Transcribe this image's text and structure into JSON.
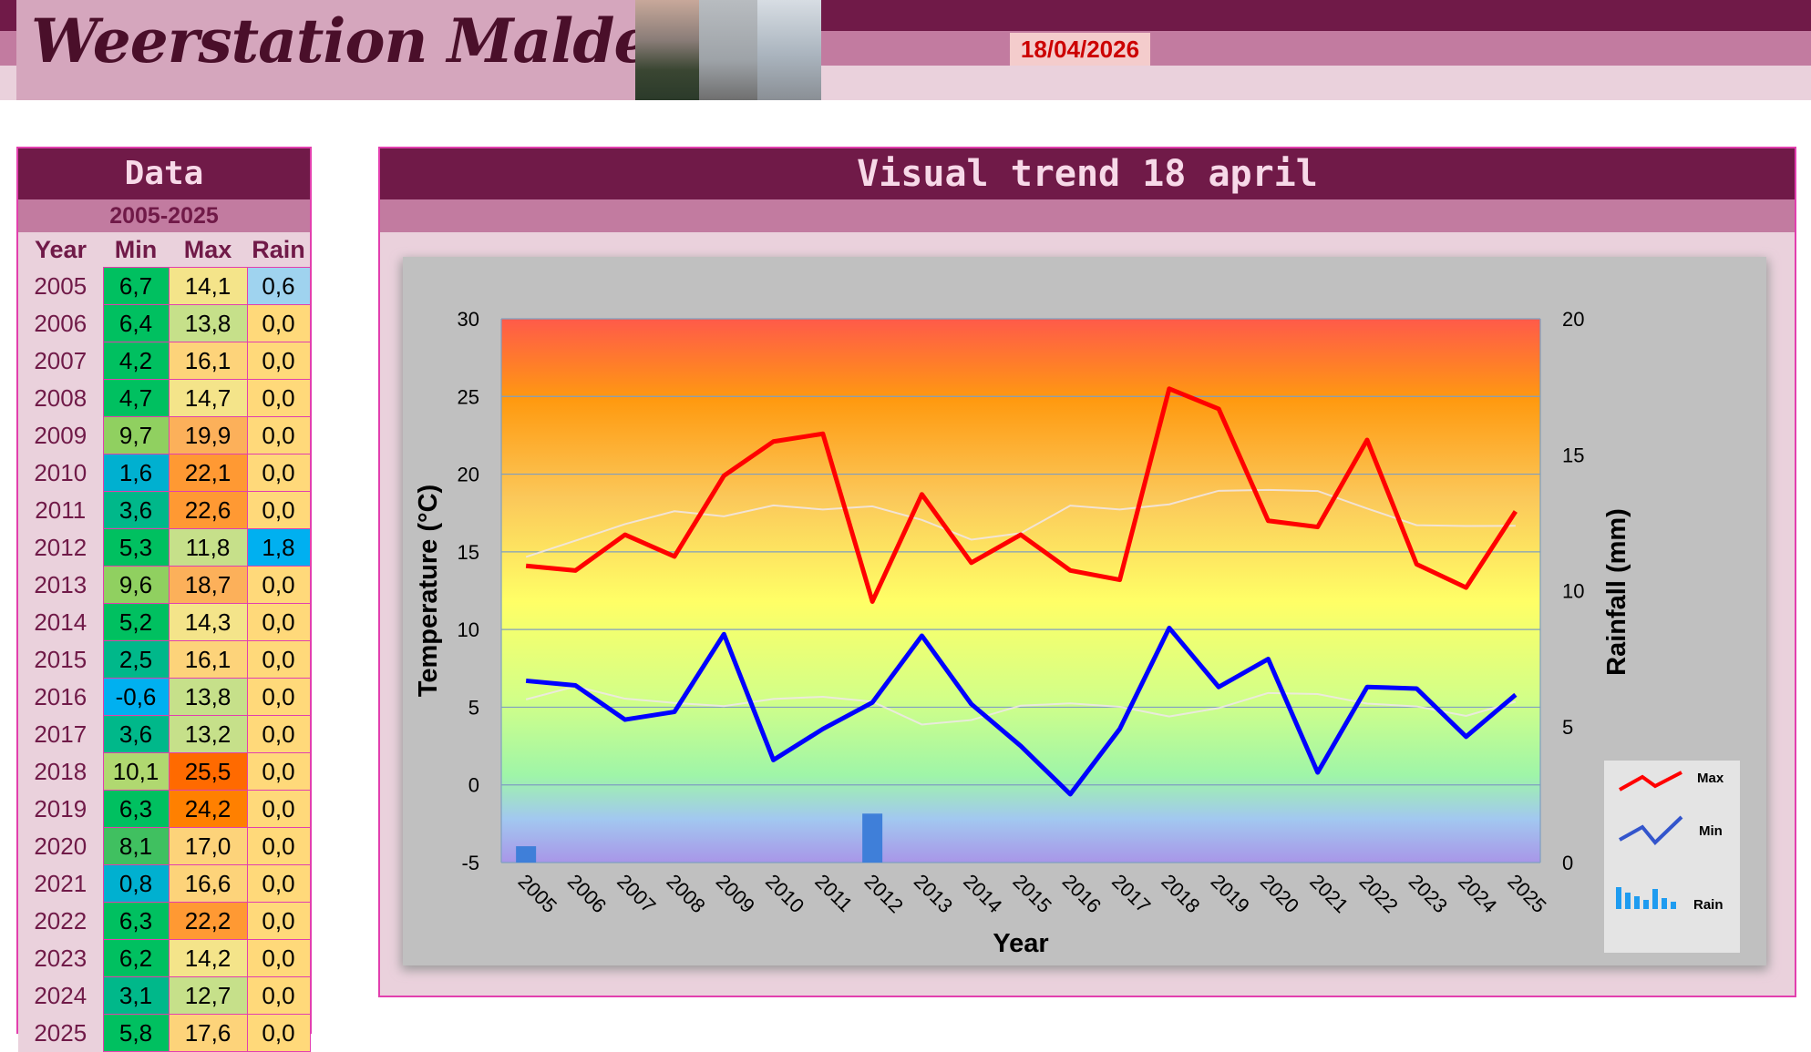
{
  "header": {
    "site_title": "Weerstation Malderen",
    "date": "18/04/2026"
  },
  "data_panel": {
    "title": "Data",
    "range": "2005-2025",
    "columns": [
      "Year",
      "Min",
      "Max",
      "Rain"
    ],
    "rows": [
      {
        "year": "2005",
        "min": "6,7",
        "max": "14,1",
        "rain": "0,6"
      },
      {
        "year": "2006",
        "min": "6,4",
        "max": "13,8",
        "rain": "0,0"
      },
      {
        "year": "2007",
        "min": "4,2",
        "max": "16,1",
        "rain": "0,0"
      },
      {
        "year": "2008",
        "min": "4,7",
        "max": "14,7",
        "rain": "0,0"
      },
      {
        "year": "2009",
        "min": "9,7",
        "max": "19,9",
        "rain": "0,0"
      },
      {
        "year": "2010",
        "min": "1,6",
        "max": "22,1",
        "rain": "0,0"
      },
      {
        "year": "2011",
        "min": "3,6",
        "max": "22,6",
        "rain": "0,0"
      },
      {
        "year": "2012",
        "min": "5,3",
        "max": "11,8",
        "rain": "1,8"
      },
      {
        "year": "2013",
        "min": "9,6",
        "max": "18,7",
        "rain": "0,0"
      },
      {
        "year": "2014",
        "min": "5,2",
        "max": "14,3",
        "rain": "0,0"
      },
      {
        "year": "2015",
        "min": "2,5",
        "max": "16,1",
        "rain": "0,0"
      },
      {
        "year": "2016",
        "min": "-0,6",
        "max": "13,8",
        "rain": "0,0"
      },
      {
        "year": "2017",
        "min": "3,6",
        "max": "13,2",
        "rain": "0,0"
      },
      {
        "year": "2018",
        "min": "10,1",
        "max": "25,5",
        "rain": "0,0"
      },
      {
        "year": "2019",
        "min": "6,3",
        "max": "24,2",
        "rain": "0,0"
      },
      {
        "year": "2020",
        "min": "8,1",
        "max": "17,0",
        "rain": "0,0"
      },
      {
        "year": "2021",
        "min": "0,8",
        "max": "16,6",
        "rain": "0,0"
      },
      {
        "year": "2022",
        "min": "6,3",
        "max": "22,2",
        "rain": "0,0"
      },
      {
        "year": "2023",
        "min": "6,2",
        "max": "14,2",
        "rain": "0,0"
      },
      {
        "year": "2024",
        "min": "3,1",
        "max": "12,7",
        "rain": "0,0"
      },
      {
        "year": "2025",
        "min": "5,8",
        "max": "17,6",
        "rain": "0,0"
      }
    ]
  },
  "chart_data": {
    "type": "line",
    "title": "Visual trend 18 april",
    "xlabel": "Year",
    "ylabel": "Temperature (°C)",
    "y2label": "Rainfall (mm)",
    "ylim": [
      -5,
      30
    ],
    "y2lim": [
      0,
      20
    ],
    "yticks": [
      -5,
      0,
      5,
      10,
      15,
      20,
      25,
      30
    ],
    "y2ticks": [
      0,
      5,
      10,
      15,
      20
    ],
    "x": [
      "2005",
      "2006",
      "2007",
      "2008",
      "2009",
      "2010",
      "2011",
      "2012",
      "2013",
      "2014",
      "2015",
      "2016",
      "2017",
      "2018",
      "2019",
      "2020",
      "2021",
      "2022",
      "2023",
      "2024",
      "2025"
    ],
    "series": [
      {
        "name": "Max",
        "type": "line",
        "color": "#ff0000",
        "axis": "left",
        "values": [
          14.1,
          13.8,
          16.1,
          14.7,
          19.9,
          22.1,
          22.6,
          11.8,
          18.7,
          14.3,
          16.1,
          13.8,
          13.2,
          25.5,
          24.2,
          17.0,
          16.6,
          22.2,
          14.2,
          12.7,
          17.6
        ]
      },
      {
        "name": "Min",
        "type": "line",
        "color": "#0000ff",
        "axis": "left",
        "values": [
          6.7,
          6.4,
          4.2,
          4.7,
          9.7,
          1.6,
          3.6,
          5.3,
          9.6,
          5.2,
          2.5,
          -0.6,
          3.6,
          10.1,
          6.3,
          8.1,
          0.8,
          6.3,
          6.2,
          3.1,
          5.8
        ]
      },
      {
        "name": "Rain",
        "type": "bar",
        "color": "#3f7fd9",
        "axis": "right",
        "values": [
          0.6,
          0,
          0,
          0,
          0,
          0,
          0,
          1.8,
          0,
          0,
          0,
          0,
          0,
          0,
          0,
          0,
          0,
          0,
          0,
          0,
          0
        ]
      }
    ],
    "legend_position": "bottom-right",
    "grid": true
  }
}
